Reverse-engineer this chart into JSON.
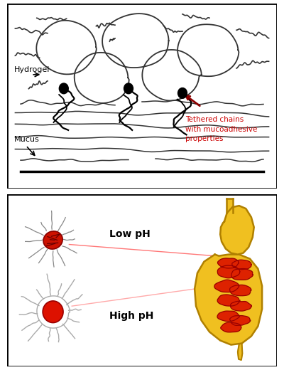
{
  "fig_width": 4.0,
  "fig_height": 5.2,
  "dpi": 100,
  "bg_color": "#ffffff",
  "top_panel": {
    "label_hydrogel": "Hydrogel",
    "label_mucus": "Mucus",
    "label_tethered": "Tethered chains\nwith mucoadhesive\nproperties",
    "label_color_tethered": "#cc0000",
    "arrow_color": "#8b0000"
  },
  "bottom_panel": {
    "label_low_ph": "Low pH",
    "label_high_ph": "High pH"
  }
}
